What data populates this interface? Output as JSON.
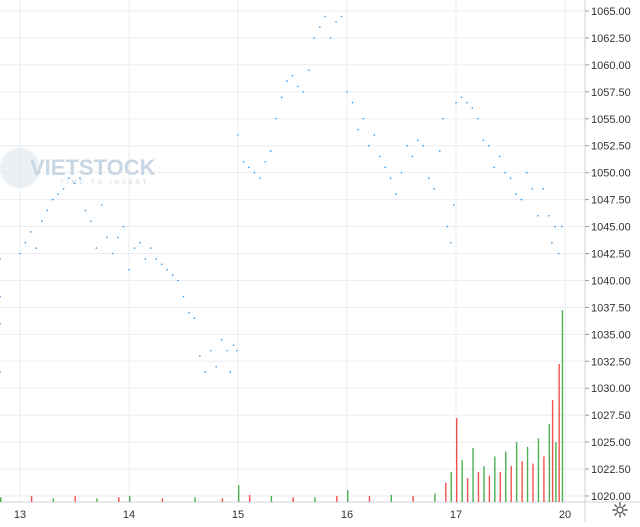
{
  "watermark": {
    "brand_text": "VIETSTOCK",
    "sub_text": "TIME TO INVEST"
  },
  "colors": {
    "price_line": "#2f95e8",
    "volume_up": "#4caf50",
    "volume_down": "#ef5350",
    "grid": "#ebedf1",
    "axis_text": "#333333",
    "watermark": "#c9d6e4"
  },
  "controls": {
    "settings_icon": "gear-icon"
  },
  "chart_data": {
    "type": "line",
    "title": "",
    "xlabel": "",
    "ylabel": "",
    "grid": true,
    "x_ticks": [
      "13",
      "14",
      "15",
      "16",
      "17",
      "20"
    ],
    "y_ticks": [
      "1065.00",
      "1062.50",
      "1060.00",
      "1057.50",
      "1055.00",
      "1052.50",
      "1050.00",
      "1047.50",
      "1045.00",
      "1042.50",
      "1040.00",
      "1037.50",
      "1035.00",
      "1032.50",
      "1030.00",
      "1027.50",
      "1025.00",
      "1022.50",
      "1020.00"
    ],
    "ylim": [
      1019.5,
      1065.5
    ],
    "series": [
      {
        "values": [
          {
            "x": 12.9,
            "y": 1038.5
          },
          {
            "x": 12.93,
            "y": 1042.0
          },
          {
            "x": 12.96,
            "y": 1031.5
          },
          {
            "x": 12.98,
            "y": 1036.0
          },
          {
            "x": 13.0,
            "y": 1042.5
          },
          {
            "x": 13.05,
            "y": 1043.5
          },
          {
            "x": 13.1,
            "y": 1044.5
          },
          {
            "x": 13.15,
            "y": 1043.0
          },
          {
            "x": 13.2,
            "y": 1045.5
          },
          {
            "x": 13.25,
            "y": 1046.5
          },
          {
            "x": 13.3,
            "y": 1047.5
          },
          {
            "x": 13.35,
            "y": 1048.0
          },
          {
            "x": 13.4,
            "y": 1048.5
          },
          {
            "x": 13.45,
            "y": 1049.5
          },
          {
            "x": 13.5,
            "y": 1049.0
          },
          {
            "x": 13.55,
            "y": 1049.5
          },
          {
            "x": 13.6,
            "y": 1046.5
          },
          {
            "x": 13.65,
            "y": 1045.5
          },
          {
            "x": 13.7,
            "y": 1043.0
          },
          {
            "x": 13.75,
            "y": 1047.0
          },
          {
            "x": 13.8,
            "y": 1044.0
          },
          {
            "x": 13.85,
            "y": 1042.5
          },
          {
            "x": 13.9,
            "y": 1044.0
          },
          {
            "x": 13.95,
            "y": 1045.0
          },
          {
            "x": 14.0,
            "y": 1041.0
          },
          {
            "x": 14.05,
            "y": 1043.0
          },
          {
            "x": 14.1,
            "y": 1043.5
          },
          {
            "x": 14.15,
            "y": 1042.0
          },
          {
            "x": 14.2,
            "y": 1043.0
          },
          {
            "x": 14.25,
            "y": 1042.0
          },
          {
            "x": 14.3,
            "y": 1041.5
          },
          {
            "x": 14.35,
            "y": 1041.0
          },
          {
            "x": 14.4,
            "y": 1040.5
          },
          {
            "x": 14.45,
            "y": 1040.0
          },
          {
            "x": 14.5,
            "y": 1038.5
          },
          {
            "x": 14.55,
            "y": 1037.0
          },
          {
            "x": 14.6,
            "y": 1036.5
          },
          {
            "x": 14.65,
            "y": 1033.0
          },
          {
            "x": 14.7,
            "y": 1031.5
          },
          {
            "x": 14.75,
            "y": 1033.5
          },
          {
            "x": 14.8,
            "y": 1032.0
          },
          {
            "x": 14.85,
            "y": 1034.5
          },
          {
            "x": 14.9,
            "y": 1033.5
          },
          {
            "x": 14.93,
            "y": 1031.5
          },
          {
            "x": 14.96,
            "y": 1034.0
          },
          {
            "x": 14.99,
            "y": 1033.5
          },
          {
            "x": 15.0,
            "y": 1053.5
          },
          {
            "x": 15.05,
            "y": 1051.0
          },
          {
            "x": 15.1,
            "y": 1050.5
          },
          {
            "x": 15.15,
            "y": 1050.0
          },
          {
            "x": 15.2,
            "y": 1049.5
          },
          {
            "x": 15.25,
            "y": 1051.0
          },
          {
            "x": 15.3,
            "y": 1052.0
          },
          {
            "x": 15.35,
            "y": 1055.0
          },
          {
            "x": 15.4,
            "y": 1057.0
          },
          {
            "x": 15.45,
            "y": 1058.5
          },
          {
            "x": 15.5,
            "y": 1059.0
          },
          {
            "x": 15.55,
            "y": 1058.0
          },
          {
            "x": 15.6,
            "y": 1057.5
          },
          {
            "x": 15.65,
            "y": 1059.5
          },
          {
            "x": 15.7,
            "y": 1062.5
          },
          {
            "x": 15.75,
            "y": 1063.5
          },
          {
            "x": 15.8,
            "y": 1064.5
          },
          {
            "x": 15.85,
            "y": 1062.5
          },
          {
            "x": 15.9,
            "y": 1064.0
          },
          {
            "x": 15.95,
            "y": 1064.5
          },
          {
            "x": 16.0,
            "y": 1057.5
          },
          {
            "x": 16.05,
            "y": 1056.5
          },
          {
            "x": 16.1,
            "y": 1054.0
          },
          {
            "x": 16.15,
            "y": 1055.0
          },
          {
            "x": 16.2,
            "y": 1052.5
          },
          {
            "x": 16.25,
            "y": 1053.5
          },
          {
            "x": 16.3,
            "y": 1051.5
          },
          {
            "x": 16.35,
            "y": 1050.5
          },
          {
            "x": 16.4,
            "y": 1049.5
          },
          {
            "x": 16.45,
            "y": 1048.0
          },
          {
            "x": 16.5,
            "y": 1050.0
          },
          {
            "x": 16.55,
            "y": 1052.5
          },
          {
            "x": 16.6,
            "y": 1051.5
          },
          {
            "x": 16.65,
            "y": 1053.0
          },
          {
            "x": 16.7,
            "y": 1052.5
          },
          {
            "x": 16.75,
            "y": 1049.5
          },
          {
            "x": 16.8,
            "y": 1048.5
          },
          {
            "x": 16.85,
            "y": 1052.0
          },
          {
            "x": 16.88,
            "y": 1055.0
          },
          {
            "x": 16.92,
            "y": 1045.0
          },
          {
            "x": 16.95,
            "y": 1043.5
          },
          {
            "x": 16.98,
            "y": 1047.0
          },
          {
            "x": 17.0,
            "y": 1056.5
          },
          {
            "x": 17.05,
            "y": 1057.0
          },
          {
            "x": 17.1,
            "y": 1056.5
          },
          {
            "x": 17.15,
            "y": 1056.0
          },
          {
            "x": 17.2,
            "y": 1055.0
          },
          {
            "x": 17.25,
            "y": 1053.0
          },
          {
            "x": 17.3,
            "y": 1052.5
          },
          {
            "x": 17.35,
            "y": 1050.5
          },
          {
            "x": 17.4,
            "y": 1051.5
          },
          {
            "x": 17.45,
            "y": 1050.0
          },
          {
            "x": 17.5,
            "y": 1049.5
          },
          {
            "x": 17.55,
            "y": 1048.0
          },
          {
            "x": 17.6,
            "y": 1047.5
          },
          {
            "x": 17.65,
            "y": 1050.0
          },
          {
            "x": 17.7,
            "y": 1048.5
          },
          {
            "x": 17.75,
            "y": 1046.0
          },
          {
            "x": 17.8,
            "y": 1048.5
          },
          {
            "x": 17.85,
            "y": 1046.0
          },
          {
            "x": 17.88,
            "y": 1043.5
          },
          {
            "x": 17.91,
            "y": 1045.0
          },
          {
            "x": 17.94,
            "y": 1042.5
          },
          {
            "x": 17.97,
            "y": 1045.0
          }
        ]
      }
    ],
    "volume": [
      {
        "x": 12.9,
        "v": 0.4
      },
      {
        "x": 13.1,
        "v": 0.5
      },
      {
        "x": 13.3,
        "v": 0.3
      },
      {
        "x": 13.5,
        "v": 0.5
      },
      {
        "x": 13.7,
        "v": 0.3
      },
      {
        "x": 13.9,
        "v": 0.4
      },
      {
        "x": 14.0,
        "v": 0.5
      },
      {
        "x": 14.3,
        "v": 0.3
      },
      {
        "x": 14.6,
        "v": 0.4
      },
      {
        "x": 14.85,
        "v": 0.3
      },
      {
        "x": 15.0,
        "v": 1.4
      },
      {
        "x": 15.1,
        "v": 0.6
      },
      {
        "x": 15.3,
        "v": 0.5
      },
      {
        "x": 15.5,
        "v": 0.4
      },
      {
        "x": 15.7,
        "v": 0.4
      },
      {
        "x": 15.9,
        "v": 0.5
      },
      {
        "x": 16.0,
        "v": 1.0
      },
      {
        "x": 16.2,
        "v": 0.5
      },
      {
        "x": 16.4,
        "v": 0.6
      },
      {
        "x": 16.6,
        "v": 0.5
      },
      {
        "x": 16.8,
        "v": 0.7
      },
      {
        "x": 16.9,
        "v": 1.6
      },
      {
        "x": 16.95,
        "v": 2.5
      },
      {
        "x": 17.0,
        "v": 7.0
      },
      {
        "x": 17.05,
        "v": 3.5
      },
      {
        "x": 17.1,
        "v": 2.0
      },
      {
        "x": 17.15,
        "v": 4.5
      },
      {
        "x": 17.2,
        "v": 2.5
      },
      {
        "x": 17.25,
        "v": 3.0
      },
      {
        "x": 17.3,
        "v": 2.2
      },
      {
        "x": 17.35,
        "v": 3.8
      },
      {
        "x": 17.4,
        "v": 2.5
      },
      {
        "x": 17.45,
        "v": 4.2
      },
      {
        "x": 17.5,
        "v": 3.0
      },
      {
        "x": 17.55,
        "v": 5.0
      },
      {
        "x": 17.6,
        "v": 3.4
      },
      {
        "x": 17.65,
        "v": 4.6
      },
      {
        "x": 17.7,
        "v": 3.2
      },
      {
        "x": 17.75,
        "v": 5.3
      },
      {
        "x": 17.8,
        "v": 3.8
      },
      {
        "x": 17.85,
        "v": 6.5
      },
      {
        "x": 17.88,
        "v": 8.5
      },
      {
        "x": 17.91,
        "v": 5.0
      },
      {
        "x": 17.94,
        "v": 11.5
      },
      {
        "x": 17.97,
        "v": 16.0
      }
    ]
  }
}
